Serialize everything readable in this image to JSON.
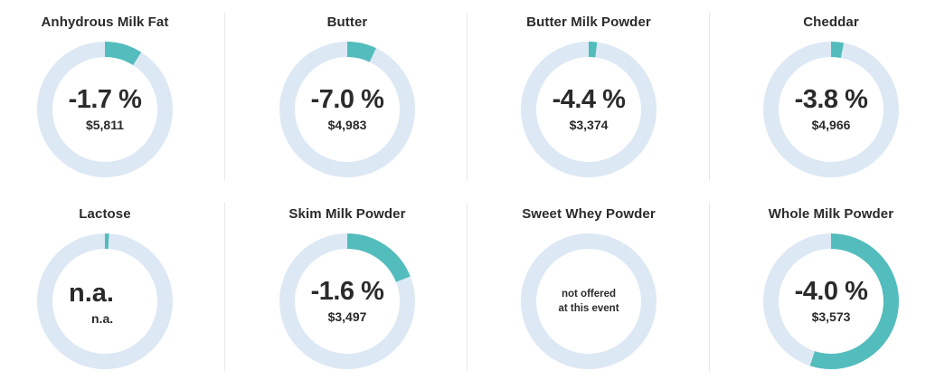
{
  "colors": {
    "track": "#dde8f5",
    "accent": "#53bcbc"
  },
  "cards": [
    {
      "title": "Anhydrous Milk Fat",
      "change": "-1.7 %",
      "price": "$5,811",
      "fraction": 0.09
    },
    {
      "title": "Butter",
      "change": "-7.0 %",
      "price": "$4,983",
      "fraction": 0.07
    },
    {
      "title": "Butter Milk Powder",
      "change": "-4.4 %",
      "price": "$3,374",
      "fraction": 0.02
    },
    {
      "title": "Cheddar",
      "change": "-3.8 %",
      "price": "$4,966",
      "fraction": 0.03
    },
    {
      "title": "Lactose",
      "change": "n.a.",
      "price": "n.a.",
      "fraction": 0.01
    },
    {
      "title": "Skim Milk Powder",
      "change": "-1.6 %",
      "price": "$3,497",
      "fraction": 0.19
    },
    {
      "title": "Sweet Whey Powder",
      "note_line1": "not offered",
      "note_line2": "at this event",
      "fraction": 0
    },
    {
      "title": "Whole Milk Powder",
      "change": "-4.0 %",
      "price": "$3,573",
      "fraction": 0.55
    }
  ]
}
